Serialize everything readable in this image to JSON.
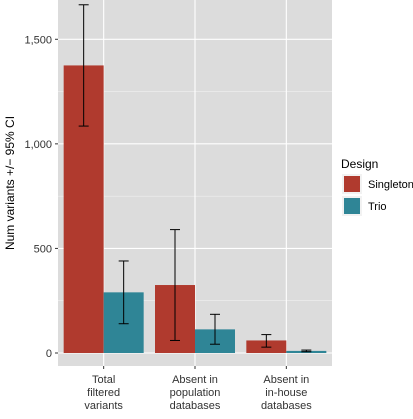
{
  "chart_data": {
    "type": "bar",
    "ylabel": "Num variants +/− 95% CI",
    "xlabel": "",
    "categories": [
      [
        "Total",
        "filtered",
        "variants"
      ],
      [
        "Absent in",
        "population",
        "databases"
      ],
      [
        "Absent in",
        "in-house",
        "databases"
      ]
    ],
    "ylim": [
      0,
      1750
    ],
    "yticks": [
      0,
      500,
      1000,
      1500
    ],
    "ytick_labels": [
      "0",
      "500",
      "1,000",
      "1,500"
    ],
    "grid": true,
    "legend": {
      "title": "Design",
      "placement": "right"
    },
    "series": [
      {
        "name": "Singleton",
        "color": "#b03a2e",
        "values": [
          1375,
          325,
          60
        ],
        "ci_low": [
          1085,
          60,
          28
        ],
        "ci_high": [
          1665,
          590,
          88
        ]
      },
      {
        "name": "Trio",
        "color": "#2f8596",
        "values": [
          290,
          113,
          10
        ],
        "ci_low": [
          140,
          42,
          6
        ],
        "ci_high": [
          440,
          185,
          14
        ]
      }
    ],
    "panel_background": "#dcdcdc",
    "grid_color": "#ffffff"
  }
}
